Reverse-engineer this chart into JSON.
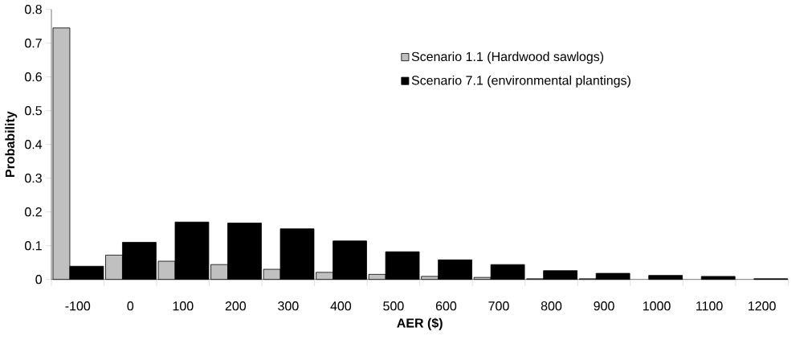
{
  "chart_data": {
    "type": "bar",
    "xlabel": "AER ($)",
    "ylabel": "Probability",
    "categories": [
      "-100",
      "0",
      "100",
      "200",
      "300",
      "400",
      "500",
      "600",
      "700",
      "800",
      "900",
      "1000",
      "1100",
      "1200"
    ],
    "series": [
      {
        "name": "Scenario 1.1 (Hardwood sawlogs)",
        "color": "#c0c0c0",
        "values": [
          0.745,
          0.072,
          0.054,
          0.044,
          0.03,
          0.021,
          0.015,
          0.009,
          0.006,
          0.002,
          0.002,
          null,
          null,
          null
        ]
      },
      {
        "name": "Scenario 7.1 (environmental plantings)",
        "color": "#000000",
        "values": [
          0.039,
          0.11,
          0.17,
          0.167,
          0.15,
          0.114,
          0.082,
          0.058,
          0.044,
          0.026,
          0.018,
          0.012,
          0.009,
          0.002
        ]
      }
    ],
    "ylim": [
      0,
      0.8
    ],
    "yticks": [
      0,
      0.1,
      0.2,
      0.3,
      0.4,
      0.5,
      0.6,
      0.7,
      0.8
    ],
    "grid": false,
    "legend": "top right"
  }
}
